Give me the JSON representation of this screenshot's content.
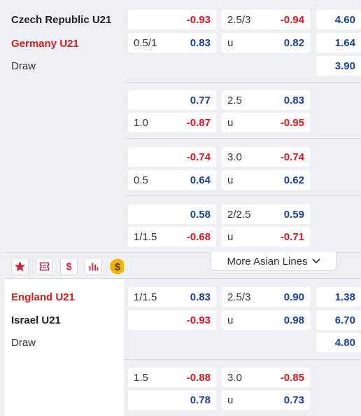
{
  "match1": {
    "home": "Czech Republic U21",
    "away": "Germany U21",
    "draw": "Draw",
    "rows": [
      {
        "handicap": "",
        "h1": "-0.93",
        "ou": "2.5/3",
        "o1": "-0.94"
      },
      {
        "handicap": "0.5/1",
        "h1": "0.83",
        "ou": "u",
        "o1": "0.82"
      },
      {
        "handicap": "",
        "h1": "0.77",
        "ou": "2.5",
        "o1": "0.83"
      },
      {
        "handicap": "1.0",
        "h1": "-0.87",
        "ou": "u",
        "o1": "-0.95"
      },
      {
        "handicap": "",
        "h1": "-0.74",
        "ou": "3.0",
        "o1": "-0.74"
      },
      {
        "handicap": "0.5",
        "h1": "0.64",
        "ou": "u",
        "o1": "0.62"
      },
      {
        "handicap": "",
        "h1": "0.58",
        "ou": "2/2.5",
        "o1": "0.59"
      },
      {
        "handicap": "1/1.5",
        "h1": "-0.68",
        "ou": "u",
        "o1": "-0.71"
      }
    ],
    "odds_1x2": [
      "4.60",
      "1.64",
      "3.90"
    ]
  },
  "toolbar": {
    "icons": [
      "star-icon",
      "ticket-icon",
      "dollar-icon",
      "stats-bars-icon",
      "coin-icon"
    ],
    "more_label": "More Asian Lines"
  },
  "match2": {
    "home": "England U21",
    "away": "Israel U21",
    "draw": "Draw",
    "rows": [
      {
        "handicap": "1/1.5",
        "h1": "0.83",
        "ou": "2.5/3",
        "o1": "0.90"
      },
      {
        "handicap": "",
        "h1": "-0.93",
        "ou": "u",
        "o1": "0.98"
      },
      {
        "handicap": "1.5",
        "h1": "-0.88",
        "ou": "3.0",
        "o1": "-0.85"
      },
      {
        "handicap": "",
        "h1": "0.78",
        "ou": "u",
        "o1": "0.73"
      }
    ],
    "odds_1x2": [
      "1.38",
      "6.70",
      "4.80"
    ]
  },
  "colors": {
    "negative": "#e0141f",
    "positive": "#1c3f94",
    "accent_red": "#d81e1e",
    "icon_red": "#d9233a",
    "coin": "#f5b400"
  }
}
